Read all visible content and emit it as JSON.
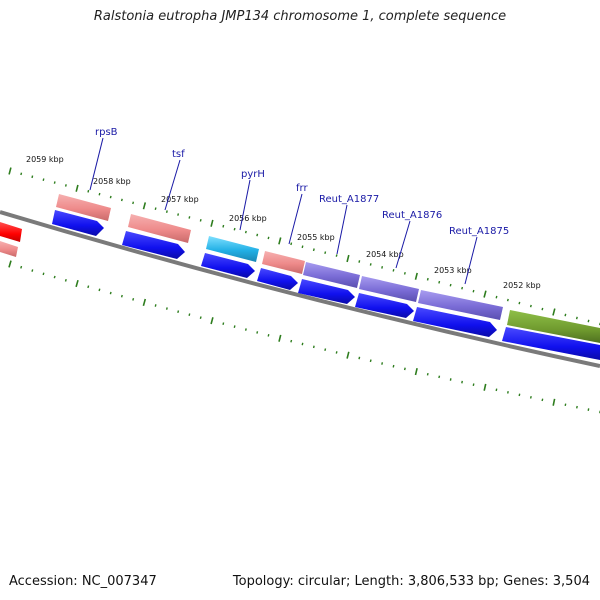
{
  "title": "Ralstonia eutropha JMP134 chromosome 1, complete sequence",
  "footer": {
    "accession": "Accession: NC_007347",
    "topology": "Topology: circular; Length: 3,806,533 bp; Genes: 3,504"
  },
  "scale_labels": [
    "2059 kbp",
    "2058 kbp",
    "2057 kbp",
    "2056 kbp",
    "2055 kbp",
    "2054 kbp",
    "2053 kbp",
    "2052 kbp"
  ],
  "genes": [
    {
      "name": "rpsB",
      "color": "#ef8f8f"
    },
    {
      "name": "tsf",
      "color": "#ef8f8f"
    },
    {
      "name": "pyrH",
      "color": "#2fb6e6"
    },
    {
      "name": "frr",
      "color": "#ef8f8f"
    },
    {
      "name": "Reut_A1877",
      "color": "#7b6fd6"
    },
    {
      "name": "Reut_A1876",
      "color": "#7b6fd6"
    },
    {
      "name": "Reut_A1875",
      "color": "#7b6fd6"
    }
  ],
  "colors": {
    "backbone": "#7a7a7a",
    "tick": "#2e7d1e",
    "cds": "#1010ee",
    "olive_feature": "#6f9a2e",
    "red_feature": "#ff0000"
  }
}
